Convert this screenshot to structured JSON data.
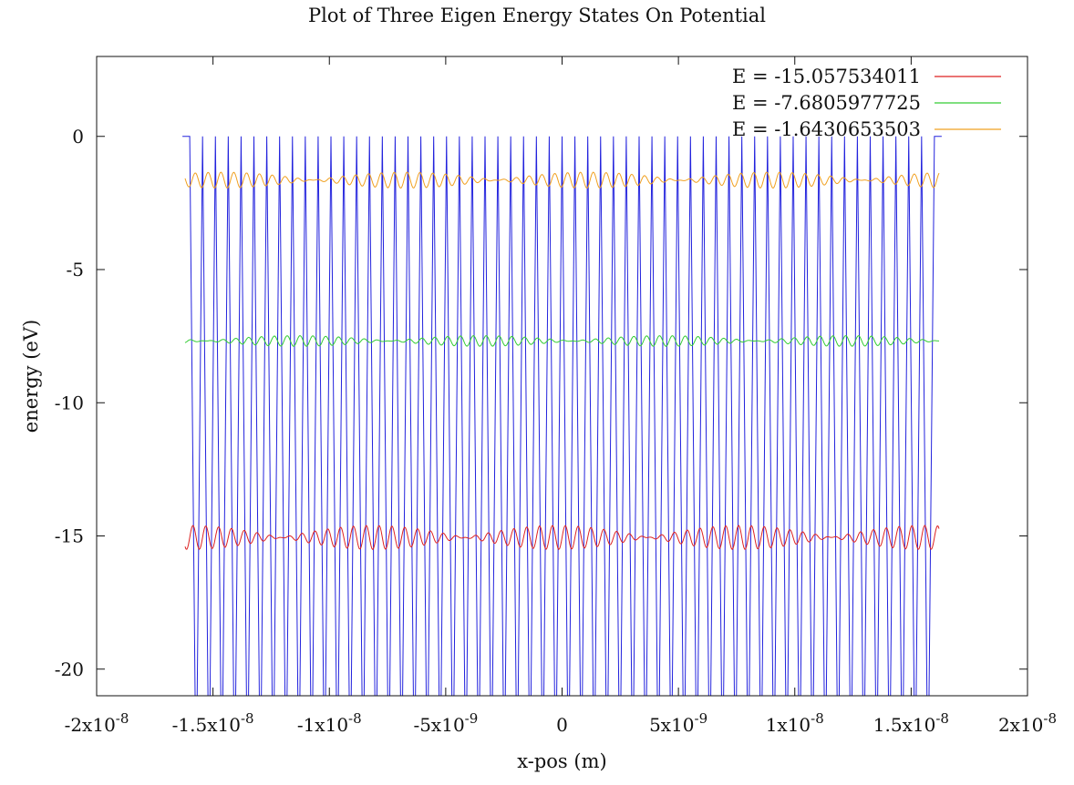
{
  "chart_data": {
    "type": "line",
    "title": "Plot of Three Eigen Energy States On Potential",
    "xlabel": "x-pos (m)",
    "ylabel": "energy (eV)",
    "xlim": [
      -2e-08,
      2e-08
    ],
    "ylim": [
      -21,
      3
    ],
    "grid": false,
    "legend_position": "top-right",
    "x_ticks": [
      {
        "value": -2e-08,
        "mant": "-2x10",
        "exp": "-8"
      },
      {
        "value": -1.5e-08,
        "mant": "-1.5x10",
        "exp": "-8"
      },
      {
        "value": -1e-08,
        "mant": "-1x10",
        "exp": "-8"
      },
      {
        "value": -5e-09,
        "mant": "-5x10",
        "exp": "-9"
      },
      {
        "value": 0,
        "mant": "0",
        "exp": ""
      },
      {
        "value": 5e-09,
        "mant": "5x10",
        "exp": "-9"
      },
      {
        "value": 1e-08,
        "mant": "1x10",
        "exp": "-8"
      },
      {
        "value": 1.5e-08,
        "mant": "1.5x10",
        "exp": "-8"
      },
      {
        "value": 2e-08,
        "mant": "2x10",
        "exp": "-8"
      }
    ],
    "y_ticks": [
      {
        "value": 0,
        "label": "0"
      },
      {
        "value": -5,
        "label": "-5"
      },
      {
        "value": -10,
        "label": "-10"
      },
      {
        "value": -15,
        "label": "-15"
      },
      {
        "value": -20,
        "label": "-20"
      }
    ],
    "potential": {
      "color": "#2222dd",
      "x_range": [
        -1.6e-08,
        1.6e-08
      ],
      "wells": 58,
      "well_depth": -21,
      "barrier": 0
    },
    "series": [
      {
        "name": "E = -15.057534011",
        "energy": -15.057534011,
        "color": "#dd2222",
        "ripple": 0.45
      },
      {
        "name": "E = -7.6805977725",
        "energy": -7.6805977725,
        "color": "#33cc33",
        "ripple": 0.2
      },
      {
        "name": "E = -1.6430653503",
        "energy": -1.6430653503,
        "color": "#f0a020",
        "ripple": 0.3
      }
    ]
  }
}
